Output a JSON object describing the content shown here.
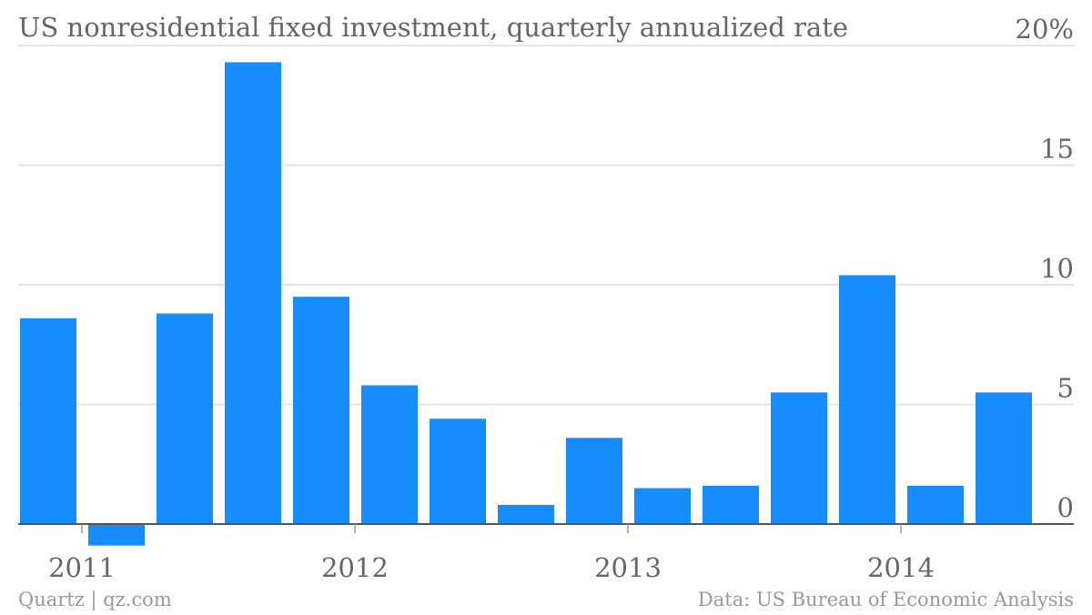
{
  "chart_data": {
    "type": "bar",
    "title": "US nonresidential fixed investment, quarterly annualized rate",
    "categories": [
      "2011 Q1",
      "2011 Q2",
      "2011 Q3",
      "2011 Q4",
      "2012 Q1",
      "2012 Q2",
      "2012 Q3",
      "2012 Q4",
      "2013 Q1",
      "2013 Q2",
      "2013 Q3",
      "2013 Q4",
      "2014 Q1",
      "2014 Q2",
      "2014 Q3"
    ],
    "values": [
      8.6,
      -0.9,
      8.8,
      19.3,
      9.5,
      5.8,
      4.4,
      0.8,
      3.6,
      1.5,
      1.6,
      5.5,
      10.4,
      1.6,
      5.5
    ],
    "ylim": [
      -1,
      20
    ],
    "yticks": [
      0,
      5,
      10,
      15,
      20
    ],
    "ytick_labels": [
      "0",
      "5",
      "10",
      "15",
      "20%"
    ],
    "xtick_labels": [
      "2011",
      "2012",
      "2013",
      "2014"
    ],
    "xtick_positions": [
      0,
      4,
      8,
      12
    ],
    "xlabel": "",
    "ylabel": "",
    "grid": true,
    "bar_color": "#168dff"
  },
  "footer": {
    "source_left": "Quartz | qz.com",
    "source_right": "Data: US Bureau of Economic Analysis"
  }
}
